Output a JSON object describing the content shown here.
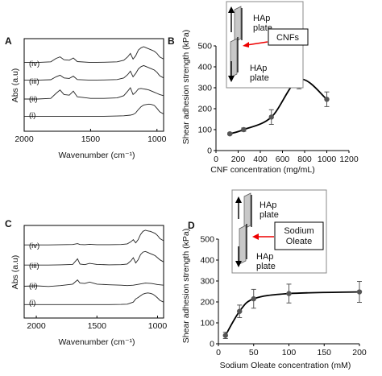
{
  "chart_data": [
    {
      "panel": "A",
      "type": "line",
      "xlabel": "Wavenumber (cm⁻¹)",
      "ylabel": "Abs (a.u)",
      "xlim": [
        2000,
        950
      ],
      "xticks": [
        "2000",
        "1500",
        "1000"
      ],
      "series": [
        {
          "label": "(iv)",
          "x": [
            2000,
            1900,
            1800,
            1760,
            1730,
            1700,
            1660,
            1630,
            1600,
            1500,
            1400,
            1300,
            1250,
            1220,
            1200,
            1180,
            1160,
            1140,
            1120,
            1100,
            1080,
            1060,
            1040,
            1020,
            1000,
            980,
            950
          ],
          "y": [
            0.3,
            0.3,
            0.33,
            0.48,
            0.55,
            0.42,
            0.4,
            0.5,
            0.34,
            0.3,
            0.31,
            0.33,
            0.4,
            0.55,
            0.7,
            0.45,
            0.6,
            0.85,
            0.95,
            1.0,
            0.95,
            0.9,
            0.85,
            0.8,
            0.7,
            0.55,
            0.45
          ]
        },
        {
          "label": "(iii)",
          "x": [
            2000,
            1900,
            1800,
            1760,
            1730,
            1700,
            1660,
            1630,
            1600,
            1500,
            1400,
            1300,
            1250,
            1220,
            1200,
            1180,
            1160,
            1140,
            1120,
            1100,
            1080,
            1060,
            1040,
            1020,
            1000,
            980,
            950
          ],
          "y": [
            0.3,
            0.3,
            0.32,
            0.45,
            0.52,
            0.4,
            0.38,
            0.48,
            0.33,
            0.3,
            0.31,
            0.33,
            0.4,
            0.55,
            0.7,
            0.45,
            0.6,
            0.8,
            0.9,
            0.95,
            0.9,
            0.85,
            0.8,
            0.75,
            0.65,
            0.5,
            0.4
          ]
        },
        {
          "label": "(ii)",
          "x": [
            2000,
            1900,
            1800,
            1760,
            1730,
            1700,
            1660,
            1630,
            1600,
            1500,
            1400,
            1300,
            1250,
            1220,
            1200,
            1180,
            1160,
            1140,
            1120,
            1100,
            1080,
            1060,
            1040,
            1020,
            1000,
            980,
            950
          ],
          "y": [
            0.25,
            0.25,
            0.28,
            0.5,
            0.65,
            0.45,
            0.42,
            0.6,
            0.35,
            0.28,
            0.28,
            0.3,
            0.4,
            0.6,
            0.75,
            0.45,
            0.55,
            0.7,
            0.72,
            0.7,
            0.68,
            0.65,
            0.6,
            0.55,
            0.5,
            0.45,
            0.4
          ]
        },
        {
          "label": "(i)",
          "x": [
            2000,
            1900,
            1800,
            1700,
            1600,
            1500,
            1400,
            1300,
            1250,
            1200,
            1180,
            1160,
            1140,
            1120,
            1100,
            1080,
            1060,
            1040,
            1020,
            1000,
            980,
            950
          ],
          "y": [
            0.2,
            0.2,
            0.2,
            0.2,
            0.2,
            0.2,
            0.2,
            0.21,
            0.22,
            0.25,
            0.28,
            0.35,
            0.5,
            0.62,
            0.7,
            0.72,
            0.74,
            0.72,
            0.68,
            0.55,
            0.4,
            0.3
          ]
        }
      ]
    },
    {
      "panel": "B",
      "type": "scatter",
      "xlabel": "CNF concentration (mg/mL)",
      "ylabel": "Shear adhesion strength (kPa)",
      "xlim": [
        0,
        1200
      ],
      "ylim": [
        0,
        500
      ],
      "xticks": [
        0,
        200,
        400,
        600,
        800,
        1000,
        1200
      ],
      "yticks": [
        0,
        100,
        200,
        300,
        400,
        500
      ],
      "points": [
        {
          "x": 125,
          "y": 80,
          "err": 5
        },
        {
          "x": 250,
          "y": 100,
          "err": 8
        },
        {
          "x": 500,
          "y": 160,
          "err": 35
        },
        {
          "x": 750,
          "y": 340,
          "err": 45
        },
        {
          "x": 1000,
          "y": 245,
          "err": 35
        }
      ],
      "inset": {
        "top_plate": "HAp plate",
        "bottom_plate": "HAp plate",
        "callout": "CNFs"
      }
    },
    {
      "panel": "C",
      "type": "line",
      "xlabel": "Wavenumber (cm⁻¹)",
      "ylabel": "Abs (a.u)",
      "xlim": [
        2100,
        950
      ],
      "xticks": [
        "2000",
        "1500",
        "1000"
      ],
      "series": [
        {
          "label": "(iv)",
          "x": [
            2100,
            2000,
            1900,
            1800,
            1700,
            1660,
            1640,
            1600,
            1560,
            1500,
            1400,
            1300,
            1250,
            1220,
            1200,
            1180,
            1160,
            1140,
            1120,
            1100,
            1080,
            1060,
            1040,
            1020,
            1000,
            980,
            950
          ],
          "y": [
            0.3,
            0.3,
            0.3,
            0.31,
            0.32,
            0.36,
            0.32,
            0.31,
            0.33,
            0.31,
            0.31,
            0.32,
            0.35,
            0.45,
            0.55,
            0.4,
            0.55,
            0.8,
            0.95,
            1.0,
            0.97,
            0.95,
            0.9,
            0.85,
            0.75,
            0.6,
            0.5
          ]
        },
        {
          "label": "(iii)",
          "x": [
            2100,
            2000,
            1900,
            1800,
            1700,
            1660,
            1640,
            1600,
            1560,
            1500,
            1400,
            1300,
            1250,
            1220,
            1200,
            1180,
            1160,
            1140,
            1120,
            1100,
            1080,
            1060,
            1040,
            1020,
            1000,
            980,
            950
          ],
          "y": [
            0.3,
            0.3,
            0.3,
            0.31,
            0.33,
            0.6,
            0.35,
            0.32,
            0.38,
            0.33,
            0.31,
            0.32,
            0.35,
            0.5,
            0.65,
            0.4,
            0.55,
            0.8,
            0.92,
            0.95,
            0.9,
            0.85,
            0.8,
            0.75,
            0.65,
            0.55,
            0.45
          ]
        },
        {
          "label": "(ii)",
          "x": [
            2100,
            2000,
            1900,
            1800,
            1700,
            1660,
            1640,
            1600,
            1560,
            1500,
            1400,
            1300,
            1250,
            1200,
            1150,
            1100,
            1050,
            1000,
            950
          ],
          "y": [
            0.25,
            0.27,
            0.24,
            0.28,
            0.35,
            0.55,
            0.4,
            0.38,
            0.45,
            0.35,
            0.32,
            0.3,
            0.28,
            0.3,
            0.35,
            0.4,
            0.38,
            0.33,
            0.3
          ]
        },
        {
          "label": "(i)",
          "x": [
            2100,
            2000,
            1900,
            1800,
            1700,
            1600,
            1500,
            1400,
            1300,
            1250,
            1200,
            1180,
            1160,
            1140,
            1120,
            1100,
            1080,
            1060,
            1040,
            1020,
            1000,
            980,
            950
          ],
          "y": [
            0.18,
            0.18,
            0.18,
            0.18,
            0.18,
            0.18,
            0.18,
            0.18,
            0.19,
            0.2,
            0.3,
            0.45,
            0.52,
            0.6,
            0.68,
            0.72,
            0.74,
            0.72,
            0.68,
            0.6,
            0.5,
            0.38,
            0.3
          ]
        }
      ]
    },
    {
      "panel": "D",
      "type": "scatter",
      "xlabel": "Sodium Oleate concentration (mM)",
      "ylabel": "Shear adhesion strength (kPa)",
      "xlim": [
        0,
        200
      ],
      "ylim": [
        0,
        500
      ],
      "xticks": [
        0,
        50,
        100,
        150,
        200
      ],
      "yticks": [
        0,
        100,
        200,
        300,
        400,
        500
      ],
      "points": [
        {
          "x": 10,
          "y": 40,
          "err": 15
        },
        {
          "x": 30,
          "y": 155,
          "err": 30
        },
        {
          "x": 50,
          "y": 215,
          "err": 45
        },
        {
          "x": 100,
          "y": 240,
          "err": 45
        },
        {
          "x": 200,
          "y": 248,
          "err": 50
        }
      ],
      "inset": {
        "top_plate": "HAp plate",
        "bottom_plate": "HAp plate",
        "callout": "Sodium Oleate"
      }
    }
  ]
}
